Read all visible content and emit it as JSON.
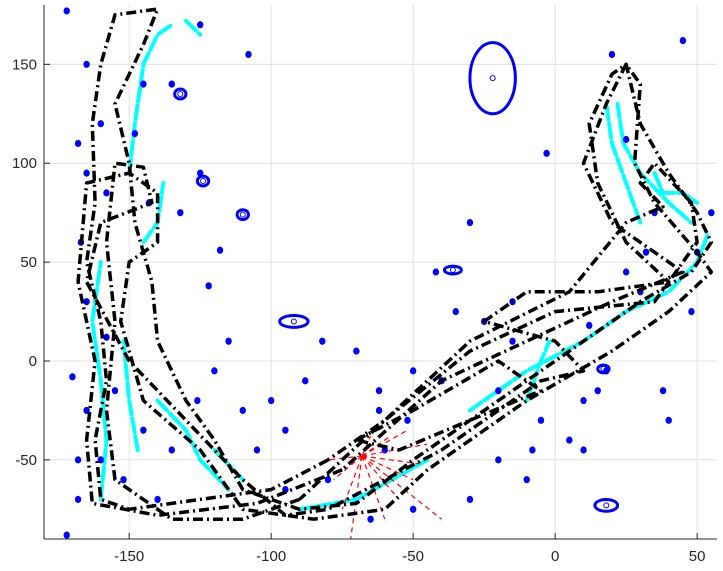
{
  "chart_data": {
    "type": "scatter",
    "title": "",
    "xlabel": "",
    "ylabel": "",
    "xlim": [
      -180,
      57
    ],
    "ylim": [
      -90,
      180
    ],
    "grid": true,
    "x_ticks": [
      -150,
      -100,
      -50,
      0,
      50
    ],
    "y_ticks": [
      -50,
      0,
      50,
      100,
      150
    ],
    "x_tick_labels": [
      "-150",
      "-100",
      "-50",
      "0",
      "50"
    ],
    "y_tick_labels": [
      "-50",
      "0",
      "50",
      "100",
      "150"
    ],
    "colors": {
      "trajectory": "#000000",
      "estimate": "#00ffff",
      "landmark": "#0000ff",
      "sensor_rays": "#ff0000",
      "grid": "#e0e0e0",
      "axes": "#262626"
    },
    "series": [
      {
        "role": "trajectory",
        "style": "dash-dot",
        "color": "#000000",
        "loops": [
          [
            [
              -80,
              -50
            ],
            [
              -100,
              -65
            ],
            [
              -125,
              -70
            ],
            [
              -150,
              -75
            ],
            [
              -160,
              -70
            ],
            [
              -162,
              -40
            ],
            [
              -158,
              -10
            ],
            [
              -160,
              20
            ],
            [
              -165,
              50
            ],
            [
              -162,
              80
            ],
            [
              -163,
              120
            ],
            [
              -160,
              150
            ],
            [
              -155,
              175
            ],
            [
              -140,
              178
            ],
            [
              -145,
              160
            ],
            [
              -155,
              130
            ],
            [
              -150,
              100
            ],
            [
              -148,
              70
            ],
            [
              -142,
              40
            ],
            [
              -140,
              10
            ],
            [
              -130,
              -20
            ],
            [
              -120,
              -40
            ],
            [
              -110,
              -65
            ],
            [
              -90,
              -75
            ],
            [
              -70,
              -72
            ],
            [
              -50,
              -50
            ],
            [
              -20,
              -20
            ],
            [
              10,
              10
            ],
            [
              30,
              30
            ],
            [
              48,
              45
            ],
            [
              55,
              60
            ],
            [
              50,
              75
            ],
            [
              40,
              95
            ],
            [
              30,
              120
            ],
            [
              25,
              150
            ],
            [
              20,
              145
            ],
            [
              12,
              120
            ],
            [
              15,
              90
            ],
            [
              25,
              60
            ],
            [
              40,
              40
            ],
            [
              35,
              30
            ],
            [
              0,
              25
            ],
            [
              -30,
              5
            ],
            [
              -60,
              -30
            ],
            [
              -80,
              -50
            ]
          ],
          [
            [
              -75,
              -55
            ],
            [
              -105,
              -72
            ],
            [
              -140,
              -78
            ],
            [
              -163,
              -72
            ],
            [
              -165,
              -40
            ],
            [
              -162,
              0
            ],
            [
              -168,
              40
            ],
            [
              -165,
              90
            ],
            [
              -150,
              95
            ],
            [
              -140,
              85
            ],
            [
              -140,
              60
            ],
            [
              -150,
              50
            ],
            [
              -153,
              20
            ],
            [
              -145,
              -20
            ],
            [
              -125,
              -45
            ],
            [
              -110,
              -75
            ],
            [
              -85,
              -80
            ],
            [
              -60,
              -75
            ],
            [
              -45,
              -55
            ],
            [
              -10,
              -20
            ],
            [
              20,
              5
            ],
            [
              40,
              25
            ],
            [
              55,
              45
            ],
            [
              50,
              55
            ],
            [
              35,
              80
            ],
            [
              28,
              100
            ],
            [
              30,
              140
            ],
            [
              25,
              150
            ],
            [
              18,
              130
            ],
            [
              10,
              100
            ],
            [
              20,
              70
            ],
            [
              35,
              55
            ],
            [
              45,
              45
            ],
            [
              20,
              30
            ],
            [
              -10,
              10
            ],
            [
              -40,
              -10
            ],
            [
              -75,
              -55
            ]
          ],
          [
            [
              -90,
              -70
            ],
            [
              -110,
              -80
            ],
            [
              -135,
              -80
            ],
            [
              -155,
              -60
            ],
            [
              -158,
              -25
            ],
            [
              -155,
              20
            ],
            [
              -158,
              60
            ],
            [
              -155,
              100
            ],
            [
              -145,
              98
            ],
            [
              -142,
              80
            ],
            [
              -160,
              70
            ],
            [
              -165,
              40
            ],
            [
              -150,
              0
            ],
            [
              -130,
              -30
            ],
            [
              -110,
              -60
            ],
            [
              -95,
              -78
            ],
            [
              -80,
              -75
            ],
            [
              -60,
              -60
            ],
            [
              -40,
              -45
            ],
            [
              -5,
              -10
            ],
            [
              10,
              -5
            ],
            [
              0,
              10
            ],
            [
              -25,
              20
            ],
            [
              -10,
              35
            ],
            [
              15,
              35
            ],
            [
              40,
              40
            ],
            [
              50,
              60
            ],
            [
              48,
              80
            ],
            [
              35,
              100
            ],
            [
              30,
              90
            ],
            [
              38,
              78
            ],
            [
              25,
              70
            ],
            [
              5,
              35
            ],
            [
              -30,
              10
            ],
            [
              -60,
              -30
            ],
            [
              -90,
              -70
            ]
          ],
          [
            [
              -70,
              -40
            ],
            [
              -50,
              -25
            ],
            [
              -20,
              0
            ],
            [
              -5,
              -15
            ],
            [
              -30,
              -30
            ],
            [
              -55,
              -45
            ],
            [
              -70,
              -40
            ]
          ]
        ]
      },
      {
        "role": "estimate",
        "style": "dashed",
        "color": "#00ffff",
        "segments": [
          [
            [
              -160,
              -70
            ],
            [
              -158,
              -40
            ],
            [
              -160,
              -10
            ],
            [
              -163,
              20
            ],
            [
              -160,
              50
            ]
          ],
          [
            [
              -147,
              -45
            ],
            [
              -150,
              -20
            ],
            [
              -152,
              10
            ]
          ],
          [
            [
              -145,
              60
            ],
            [
              -140,
              70
            ],
            [
              -138,
              90
            ]
          ],
          [
            [
              -150,
              95
            ],
            [
              -148,
              120
            ],
            [
              -145,
              150
            ],
            [
              -140,
              165
            ],
            [
              -135,
              170
            ]
          ],
          [
            [
              -130,
              172
            ],
            [
              -125,
              165
            ]
          ],
          [
            [
              -140,
              -20
            ],
            [
              -130,
              -35
            ],
            [
              -125,
              -50
            ],
            [
              -115,
              -65
            ]
          ],
          [
            [
              -120,
              -45
            ],
            [
              -110,
              -60
            ]
          ],
          [
            [
              -90,
              -75
            ],
            [
              -70,
              -70
            ],
            [
              -55,
              -58
            ],
            [
              -45,
              -50
            ]
          ],
          [
            [
              -30,
              -25
            ],
            [
              -10,
              -5
            ],
            [
              10,
              10
            ],
            [
              25,
              25
            ],
            [
              40,
              35
            ],
            [
              50,
              50
            ],
            [
              54,
              65
            ]
          ],
          [
            [
              30,
              70
            ],
            [
              25,
              90
            ],
            [
              20,
              110
            ],
            [
              18,
              130
            ]
          ],
          [
            [
              35,
              95
            ],
            [
              38,
              85
            ],
            [
              45,
              85
            ],
            [
              50,
              80
            ]
          ],
          [
            [
              -10,
              -20
            ],
            [
              -5,
              0
            ],
            [
              -2,
              10
            ]
          ],
          [
            [
              22,
              130
            ],
            [
              24,
              110
            ],
            [
              30,
              95
            ],
            [
              40,
              80
            ],
            [
              48,
              70
            ]
          ]
        ]
      },
      {
        "role": "landmark",
        "style": "ellipse",
        "color": "#0000ff",
        "filled": [
          [
            -172,
            177
          ],
          [
            -165,
            150
          ],
          [
            -125,
            170
          ],
          [
            -108,
            155
          ],
          [
            -145,
            140
          ],
          [
            -168,
            110
          ],
          [
            -165,
            95
          ],
          [
            -160,
            120
          ],
          [
            -148,
            115
          ],
          [
            -125,
            95
          ],
          [
            -132,
            75
          ],
          [
            -167,
            60
          ],
          [
            -165,
            30
          ],
          [
            -158,
            12
          ],
          [
            -170,
            -8
          ],
          [
            -165,
            -25
          ],
          [
            -168,
            -50
          ],
          [
            -168,
            -70
          ],
          [
            -172,
            -88
          ],
          [
            -155,
            -15
          ],
          [
            -145,
            -35
          ],
          [
            -135,
            -45
          ],
          [
            -152,
            -60
          ],
          [
            -140,
            -70
          ],
          [
            -126,
            -20
          ],
          [
            -120,
            -5
          ],
          [
            -110,
            -25
          ],
          [
            -115,
            10
          ],
          [
            -122,
            38
          ],
          [
            -118,
            56
          ],
          [
            -100,
            -20
          ],
          [
            -95,
            -35
          ],
          [
            -88,
            -10
          ],
          [
            -82,
            10
          ],
          [
            -80,
            -60
          ],
          [
            -60,
            -45
          ],
          [
            -52,
            -30
          ],
          [
            -40,
            -10
          ],
          [
            -35,
            25
          ],
          [
            -42,
            45
          ],
          [
            -30,
            70
          ],
          [
            -25,
            20
          ],
          [
            -15,
            10
          ],
          [
            -20,
            -15
          ],
          [
            -5,
            -30
          ],
          [
            -20,
            -50
          ],
          [
            -30,
            -70
          ],
          [
            -10,
            -60
          ],
          [
            5,
            -40
          ],
          [
            10,
            -20
          ],
          [
            18,
            -5
          ],
          [
            25,
            45
          ],
          [
            32,
            55
          ],
          [
            35,
            75
          ],
          [
            48,
            25
          ],
          [
            38,
            -15
          ],
          [
            40,
            -30
          ],
          [
            55,
            75
          ],
          [
            45,
            162
          ],
          [
            -3,
            105
          ],
          [
            -15,
            30
          ],
          [
            -8,
            -45
          ],
          [
            10,
            -45
          ],
          [
            -65,
            -80
          ],
          [
            -50,
            -75
          ],
          [
            -160,
            -50
          ],
          [
            -135,
            140
          ],
          [
            -158,
            85
          ],
          [
            -143,
            80
          ],
          [
            -105,
            -45
          ],
          [
            -95,
            -65
          ],
          [
            -50,
            -5
          ],
          [
            -70,
            5
          ],
          [
            -62,
            -15
          ],
          [
            -62,
            -25
          ],
          [
            15,
            -15
          ],
          [
            12,
            18
          ],
          [
            25,
            112
          ],
          [
            20,
            155
          ],
          [
            30,
            35
          ],
          [
            50,
            55
          ]
        ],
        "outlined": [
          {
            "x": -22,
            "y": 143,
            "rx": 8,
            "ry": 18
          },
          {
            "x": -92,
            "y": 20,
            "rx": 5,
            "ry": 3
          },
          {
            "x": 18,
            "y": -73,
            "rx": 4,
            "ry": 3
          },
          {
            "x": -36,
            "y": 46,
            "rx": 3,
            "ry": 2
          },
          {
            "x": -110,
            "y": 74,
            "rx": 2,
            "ry": 2.5
          },
          {
            "x": -124,
            "y": 91,
            "rx": 2,
            "ry": 2.5
          },
          {
            "x": -132,
            "y": 135,
            "rx": 2,
            "ry": 2.5
          },
          {
            "x": 17,
            "y": -4,
            "rx": 2,
            "ry": 2
          }
        ]
      },
      {
        "role": "sensor_rays",
        "style": "dashed",
        "color": "#ff0000",
        "origin": [
          -68,
          -48
        ],
        "ends": [
          [
            -80,
            -50
          ],
          [
            -78,
            -60
          ],
          [
            -75,
            -75
          ],
          [
            -72,
            -90
          ],
          [
            -60,
            -80
          ],
          [
            -55,
            -70
          ],
          [
            -50,
            -60
          ],
          [
            -48,
            -52
          ],
          [
            -45,
            -42
          ],
          [
            -52,
            -35
          ],
          [
            -58,
            -38
          ],
          [
            -65,
            -38
          ],
          [
            -40,
            -80
          ]
        ]
      }
    ]
  }
}
